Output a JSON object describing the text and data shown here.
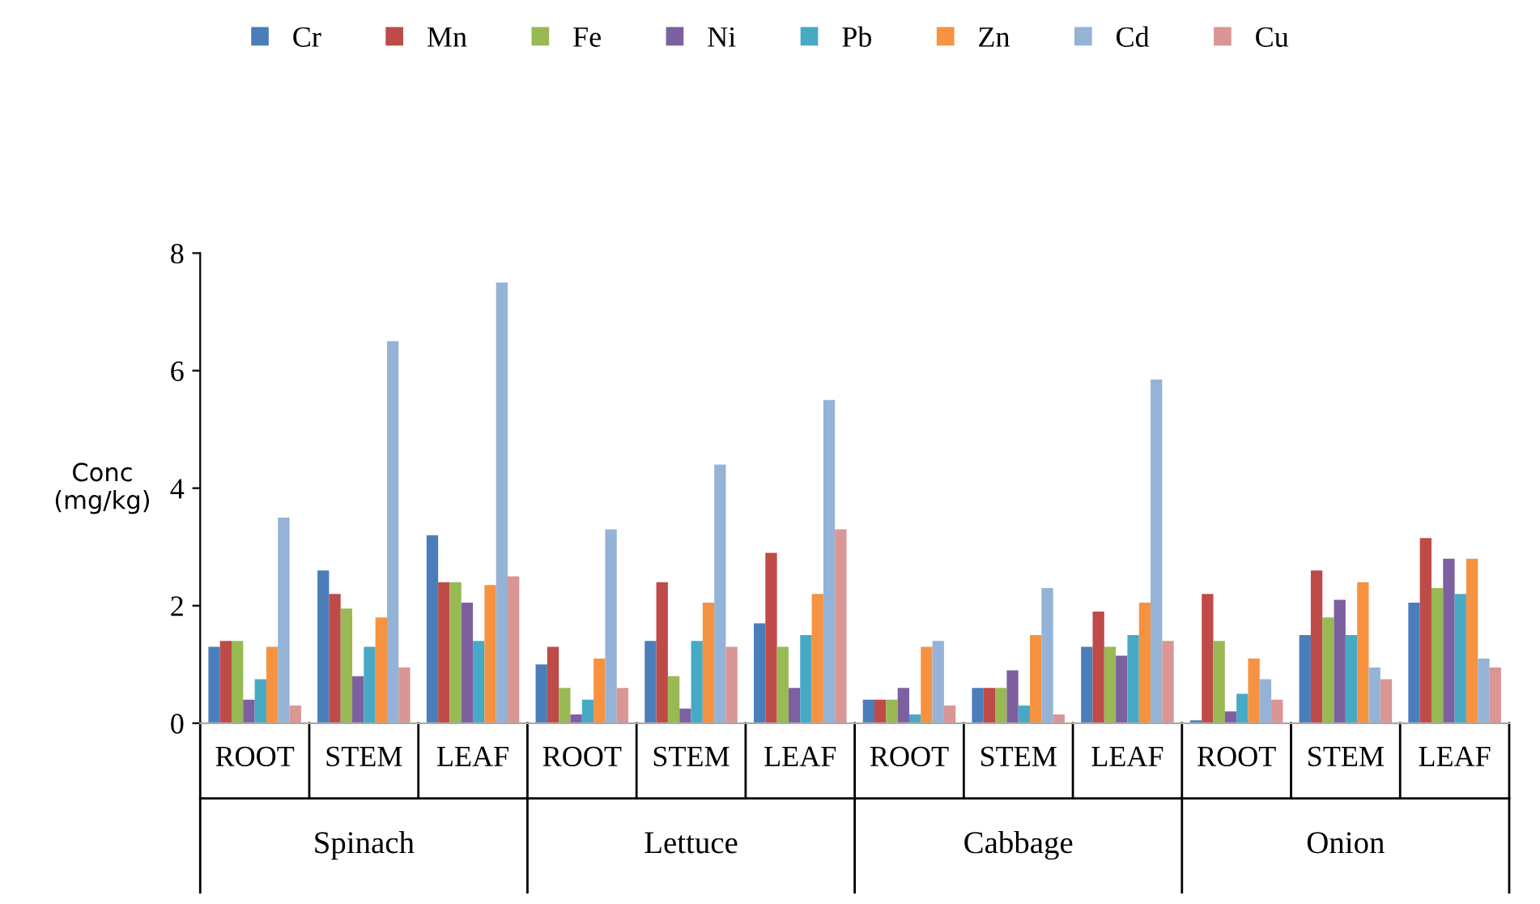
{
  "chart_data": {
    "type": "bar",
    "ylabel": "Conc\n(mg/kg)",
    "categories": [
      "ROOT",
      "STEM",
      "LEAF",
      "ROOT",
      "STEM",
      "LEAF",
      "ROOT",
      "STEM",
      "LEAF",
      "ROOT",
      "STEM",
      "LEAF"
    ],
    "annotations": [
      "Spinach",
      "Lettuce",
      "Cabbage",
      "Onion"
    ],
    "ylim": [
      0,
      8
    ],
    "yticks": [
      0,
      2,
      4,
      6,
      8
    ],
    "grid": false,
    "legend": "top",
    "series": [
      {
        "name": "Cr",
        "color": "#4a7ebb",
        "values": [
          1.3,
          2.6,
          3.2,
          1.0,
          1.4,
          1.7,
          0.4,
          0.6,
          1.3,
          0.05,
          1.5,
          2.05
        ]
      },
      {
        "name": "Mn",
        "color": "#be4b48",
        "values": [
          1.4,
          2.2,
          2.4,
          1.3,
          2.4,
          2.9,
          0.4,
          0.6,
          1.9,
          2.2,
          2.6,
          3.15
        ]
      },
      {
        "name": "Fe",
        "color": "#98b954",
        "values": [
          1.4,
          1.95,
          2.4,
          0.6,
          0.8,
          1.3,
          0.4,
          0.6,
          1.3,
          1.4,
          1.8,
          2.3
        ]
      },
      {
        "name": "Ni",
        "color": "#7d60a0",
        "values": [
          0.4,
          0.8,
          2.05,
          0.15,
          0.25,
          0.6,
          0.6,
          0.9,
          1.15,
          0.2,
          2.1,
          2.8
        ]
      },
      {
        "name": "Pb",
        "color": "#46aac5",
        "values": [
          0.75,
          1.3,
          1.4,
          0.4,
          1.4,
          1.5,
          0.15,
          0.3,
          1.5,
          0.5,
          1.5,
          2.2
        ]
      },
      {
        "name": "Zn",
        "color": "#f69240",
        "values": [
          1.3,
          1.8,
          2.35,
          1.1,
          2.05,
          2.2,
          1.3,
          1.5,
          2.05,
          1.1,
          2.4,
          2.8
        ]
      },
      {
        "name": "Cd",
        "color": "#95b3d7",
        "values": [
          3.5,
          6.5,
          7.5,
          3.3,
          4.4,
          5.5,
          1.4,
          2.3,
          5.85,
          0.75,
          0.95,
          1.1
        ]
      },
      {
        "name": "Cu",
        "color": "#d99694",
        "values": [
          0.3,
          0.95,
          2.5,
          0.6,
          1.3,
          3.3,
          0.3,
          0.15,
          1.4,
          0.4,
          0.75,
          0.95
        ]
      }
    ]
  }
}
